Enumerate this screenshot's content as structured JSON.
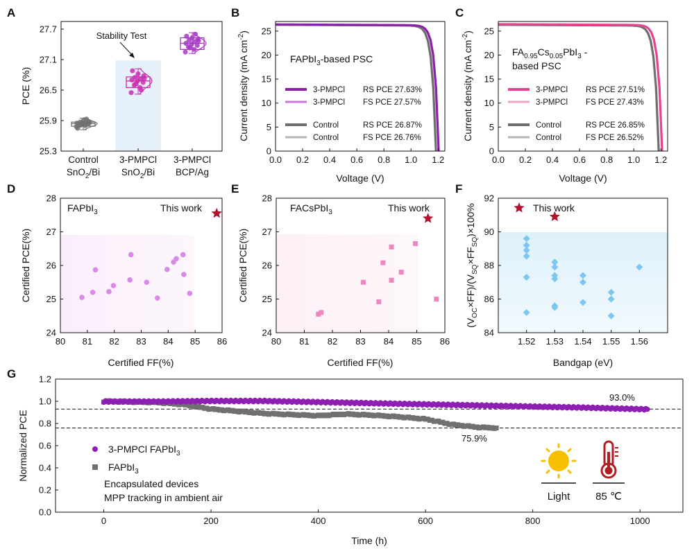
{
  "chart_data": [
    {
      "panel": "A",
      "type": "box",
      "categories": [
        [
          "Control",
          "SnO2/Bi"
        ],
        [
          "3-PMPCl",
          "SnO2/Bi"
        ],
        [
          "3-PMPCl",
          "BCP/Ag"
        ]
      ],
      "series": [
        {
          "name": "Control SnO2/Bi",
          "color": "#707070",
          "q1": 25.79,
          "median": 25.84,
          "q3": 25.87,
          "min": 25.72,
          "max": 25.95,
          "points": [
            25.78,
            25.8,
            25.82,
            25.83,
            25.84,
            25.85,
            25.86,
            25.87,
            25.88,
            25.9,
            25.75,
            25.93,
            25.81,
            25.86
          ]
        },
        {
          "name": "3-PMPCl SnO2/Bi",
          "color": "#cc2bb0",
          "q1": 26.55,
          "median": 26.68,
          "q3": 26.76,
          "min": 26.42,
          "max": 26.92,
          "points": [
            26.45,
            26.55,
            26.6,
            26.65,
            26.68,
            26.7,
            26.72,
            26.75,
            26.78,
            26.82,
            26.88,
            26.5,
            26.62,
            26.73
          ]
        },
        {
          "name": "3-PMPCl BCP/Ag",
          "color": "#a637c4",
          "q1": 27.3,
          "median": 27.42,
          "q3": 27.53,
          "min": 27.22,
          "max": 27.63,
          "points": [
            27.25,
            27.3,
            27.35,
            27.38,
            27.4,
            27.42,
            27.45,
            27.48,
            27.5,
            27.53,
            27.56,
            27.6,
            27.33,
            27.47
          ]
        }
      ],
      "ylabel": "PCE (%)",
      "ylim": [
        25.3,
        27.85
      ],
      "yticks": [
        "25.3",
        "25.9",
        "26.5",
        "27.1",
        "27.7"
      ],
      "annotation": "Stability Test"
    },
    {
      "panel": "B",
      "type": "line",
      "title": "FAPbI3-based PSC",
      "xlabel": "Voltage (V)",
      "ylabel": "Current density (mA cm-2)",
      "xlim": [
        0,
        1.25
      ],
      "ylim": [
        0,
        27
      ],
      "xticks": [
        "0.0",
        "0.2",
        "0.4",
        "0.6",
        "0.8",
        "1.0",
        "1.2"
      ],
      "yticks": [
        "0",
        "5",
        "10",
        "15",
        "20",
        "25"
      ],
      "series": [
        {
          "name": "3-PMPCl",
          "scan": "RS",
          "pce": "27.63%",
          "jsc": 26.4,
          "voc": 1.205,
          "color": "#8b1fa9",
          "width": 3
        },
        {
          "name": "3-PMPCl",
          "scan": "FS",
          "pce": "27.57%",
          "jsc": 26.35,
          "voc": 1.2,
          "color": "#cc72e0",
          "width": 2
        },
        {
          "name": "Control",
          "scan": "RS",
          "pce": "26.87%",
          "jsc": 26.3,
          "voc": 1.185,
          "color": "#6e6e6e",
          "width": 3
        },
        {
          "name": "Control",
          "scan": "FS",
          "pce": "26.76%",
          "jsc": 26.25,
          "voc": 1.18,
          "color": "#b4b4b4",
          "width": 2
        }
      ]
    },
    {
      "panel": "C",
      "type": "line",
      "title": "FA0.95Cs0.05PbI3 - based PSC",
      "xlabel": "Voltage (V)",
      "ylabel": "Current density (mA cm-2)",
      "xlim": [
        0,
        1.25
      ],
      "ylim": [
        0,
        27
      ],
      "xticks": [
        "0.0",
        "0.2",
        "0.4",
        "0.6",
        "0.8",
        "1.0",
        "1.2"
      ],
      "yticks": [
        "0",
        "5",
        "10",
        "15",
        "20",
        "25"
      ],
      "series": [
        {
          "name": "3-PMPCl",
          "scan": "RS",
          "pce": "27.51%",
          "jsc": 26.45,
          "voc": 1.21,
          "color": "#e8418f",
          "width": 3
        },
        {
          "name": "3-PMPCl",
          "scan": "FS",
          "pce": "27.43%",
          "jsc": 26.4,
          "voc": 1.205,
          "color": "#f3a2c7",
          "width": 2
        },
        {
          "name": "Control",
          "scan": "RS",
          "pce": "26.85%",
          "jsc": 26.3,
          "voc": 1.185,
          "color": "#6e6e6e",
          "width": 3
        },
        {
          "name": "Control",
          "scan": "FS",
          "pce": "26.52%",
          "jsc": 26.25,
          "voc": 1.18,
          "color": "#b4b4b4",
          "width": 2
        }
      ]
    },
    {
      "panel": "D",
      "type": "scatter",
      "title": "FAPbI3",
      "xlabel": "Certified FF(%)",
      "ylabel": "Certified PCE(%)",
      "xlim": [
        80,
        86
      ],
      "ylim": [
        24,
        28
      ],
      "xticks": [
        "80",
        "81",
        "82",
        "83",
        "84",
        "85",
        "86"
      ],
      "yticks": [
        "24",
        "25",
        "26",
        "27",
        "28"
      ],
      "color": "#d88be6",
      "points": [
        [
          80.8,
          25.05
        ],
        [
          81.2,
          25.2
        ],
        [
          81.3,
          25.87
        ],
        [
          81.8,
          25.22
        ],
        [
          81.97,
          25.4
        ],
        [
          82.58,
          25.57
        ],
        [
          82.62,
          26.32
        ],
        [
          83.2,
          25.5
        ],
        [
          83.6,
          25.03
        ],
        [
          83.96,
          25.88
        ],
        [
          84.2,
          26.1
        ],
        [
          84.3,
          26.2
        ],
        [
          84.55,
          26.32
        ],
        [
          84.58,
          25.73
        ],
        [
          84.8,
          25.17
        ]
      ],
      "highlight": {
        "x": 85.8,
        "y": 27.55,
        "label": "This work",
        "color": "#b3132d"
      }
    },
    {
      "panel": "E",
      "type": "scatter",
      "title": "FACsPbI3",
      "xlabel": "Certified FF(%)",
      "ylabel": "Certified PCE(%)",
      "xlim": [
        80,
        86
      ],
      "ylim": [
        24,
        28
      ],
      "xticks": [
        "80",
        "81",
        "82",
        "83",
        "84",
        "85",
        "86"
      ],
      "yticks": [
        "24",
        "25",
        "26",
        "27",
        "28"
      ],
      "color": "#ee86bf",
      "points": [
        [
          81.5,
          24.55
        ],
        [
          81.6,
          24.6
        ],
        [
          83.1,
          25.5
        ],
        [
          83.65,
          24.92
        ],
        [
          83.8,
          26.08
        ],
        [
          84.1,
          26.55
        ],
        [
          84.1,
          25.56
        ],
        [
          84.45,
          25.8
        ],
        [
          84.95,
          26.65
        ],
        [
          85.7,
          25.0
        ]
      ],
      "highlight": {
        "x": 85.4,
        "y": 27.4,
        "label": "This work",
        "color": "#b3132d"
      }
    },
    {
      "panel": "F",
      "type": "scatter",
      "xlabel": "Bandgap (eV)",
      "ylabel": "(VOC×FF)/(VSQ×FFSQ)×100%",
      "xlim": [
        1.51,
        1.57
      ],
      "ylim": [
        84,
        92
      ],
      "xticks": [
        "1.52",
        "1.53",
        "1.54",
        "1.55",
        "1.56"
      ],
      "yticks": [
        "84",
        "86",
        "88",
        "90",
        "92"
      ],
      "color": "#7ec6ef",
      "points": [
        [
          1.52,
          89.6
        ],
        [
          1.52,
          89.2
        ],
        [
          1.52,
          88.9
        ],
        [
          1.52,
          88.55
        ],
        [
          1.52,
          87.3
        ],
        [
          1.52,
          85.2
        ],
        [
          1.53,
          88.2
        ],
        [
          1.53,
          87.9
        ],
        [
          1.53,
          87.4
        ],
        [
          1.53,
          87.2
        ],
        [
          1.53,
          85.6
        ],
        [
          1.53,
          85.5
        ],
        [
          1.54,
          87.4
        ],
        [
          1.54,
          87.0
        ],
        [
          1.54,
          85.8
        ],
        [
          1.55,
          86.4
        ],
        [
          1.55,
          86.0
        ],
        [
          1.55,
          85.0
        ],
        [
          1.56,
          87.9
        ]
      ],
      "highlight": {
        "x": 1.53,
        "y": 90.9,
        "label": "This work",
        "color": "#b3132d"
      }
    },
    {
      "panel": "G",
      "type": "scatter",
      "xlabel": "Time (h)",
      "ylabel": "Normalized PCE",
      "xlim": [
        -90,
        1080
      ],
      "ylim": [
        0,
        1.2
      ],
      "xticks": [
        "0",
        "200",
        "400",
        "600",
        "800",
        "1000"
      ],
      "yticks": [
        "0.0",
        "0.2",
        "0.4",
        "0.6",
        "0.8",
        "1.0",
        "1.2"
      ],
      "series": [
        {
          "name": "3-PMPCl FAPbI3",
          "color": "#8e1fb3",
          "marker": "circle",
          "x": [
            0,
            100,
            200,
            300,
            400,
            500,
            600,
            700,
            800,
            900,
            1015
          ],
          "y": [
            1.0,
            1.0,
            1.005,
            1.005,
            0.995,
            0.985,
            0.975,
            0.965,
            0.955,
            0.945,
            0.93
          ]
        },
        {
          "name": "FAPbI3",
          "color": "#707070",
          "marker": "square",
          "x": [
            0,
            100,
            150,
            200,
            300,
            400,
            450,
            500,
            550,
            600,
            650,
            700,
            735
          ],
          "y": [
            1.0,
            0.99,
            0.97,
            0.93,
            0.89,
            0.87,
            0.885,
            0.875,
            0.86,
            0.84,
            0.79,
            0.765,
            0.759
          ]
        }
      ],
      "reference_lines": [
        0.93,
        0.759
      ],
      "annotations": [
        "93.0%",
        "75.9%"
      ],
      "notes": [
        "Encapsulated devices",
        "MPP tracking in ambient air"
      ],
      "conditions": [
        {
          "icon": "sun-icon",
          "label": "Light",
          "color": "#f6bf00"
        },
        {
          "icon": "thermometer-icon",
          "label": "85 ℃",
          "color": "#b01e24"
        }
      ]
    }
  ],
  "panel_letters": [
    "A",
    "B",
    "C",
    "D",
    "E",
    "F",
    "G"
  ]
}
